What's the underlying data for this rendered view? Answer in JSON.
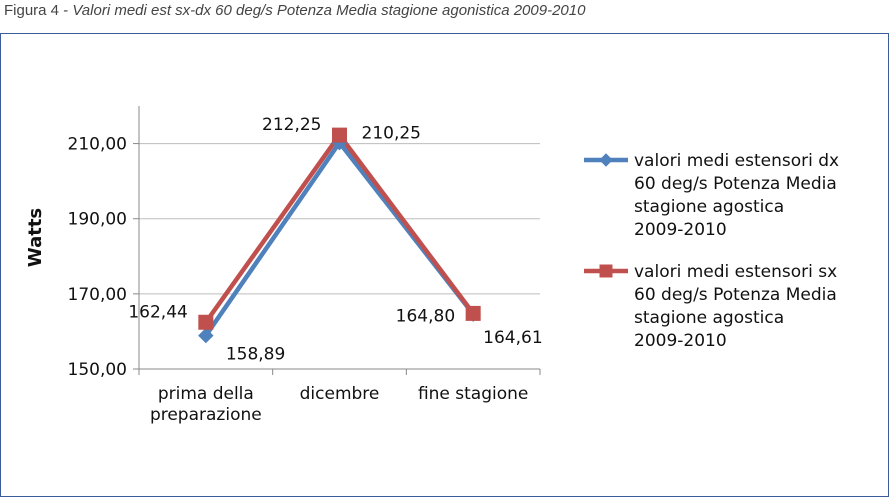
{
  "caption": {
    "prefix": "Figura 4 - ",
    "text": "Valori medi est sx-dx 60 deg/s Potenza Media stagione agonistica 2009-2010"
  },
  "chart_data": {
    "type": "line",
    "categories": [
      [
        "prima della",
        "preparazione"
      ],
      [
        "dicembre"
      ],
      [
        "fine stagione"
      ]
    ],
    "ylabel": "Watts",
    "ylim": [
      150,
      220
    ],
    "yticks": [
      150,
      170,
      190,
      210
    ],
    "ytick_labels": [
      "150,00",
      "170,00",
      "190,00",
      "210,00"
    ],
    "grid": true,
    "legend_position": "right",
    "series": [
      {
        "name_lines": [
          "valori medi estensori dx",
          "60 deg/s Potenza Media",
          "stagione agostica",
          "2009-2010"
        ],
        "values": [
          158.89,
          210.25,
          164.61
        ],
        "labels": [
          "158,89",
          "210,25",
          "164,61"
        ],
        "color": "#4f81bd",
        "marker": "diamond"
      },
      {
        "name_lines": [
          "valori medi estensori sx",
          "60 deg/s Potenza Media",
          "stagione agostica",
          "2009-2010"
        ],
        "values": [
          162.44,
          212.25,
          164.8
        ],
        "labels": [
          "162,44",
          "212,25",
          "164,80"
        ],
        "color": "#c0504d",
        "marker": "square"
      }
    ]
  }
}
